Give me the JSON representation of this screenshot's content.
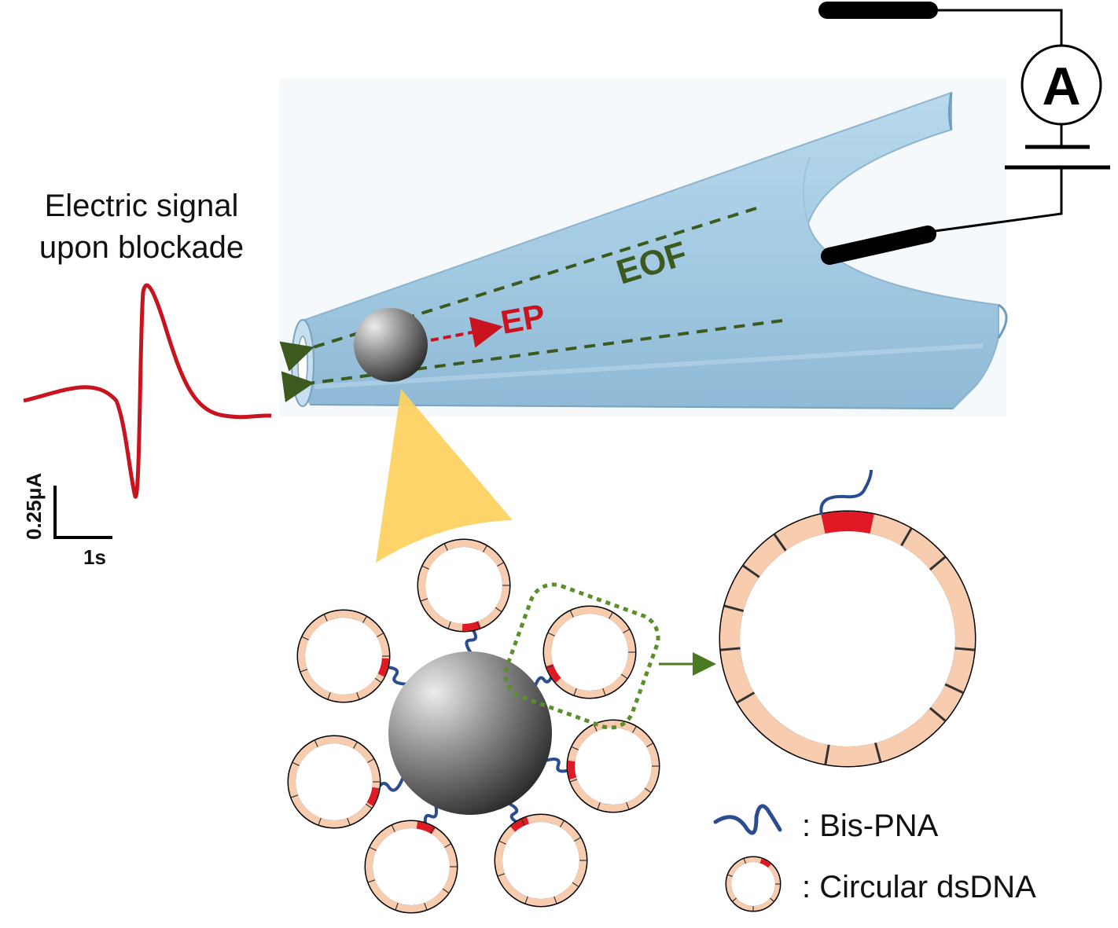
{
  "signal": {
    "caption_line1": "Electric signal",
    "caption_line2": "upon blockade",
    "scale_y": "0.25μA",
    "scale_x": "1s"
  },
  "pipette": {
    "ep_label": "EP",
    "eof_label": "EOF"
  },
  "ammeter": {
    "symbol": "A"
  },
  "legend": {
    "bis_pna": ": Bis-PNA",
    "circular_dsdna": ": Circular dsDNA"
  },
  "colors": {
    "signal_trace": "#c8141e",
    "ep_arrow": "#c8141e",
    "eof_arrow": "#3d5a1e",
    "pipette_fill": "#a9cde4",
    "dna_ring": "#f8ccae",
    "pna_strand": "#2b4c8f",
    "pna_site": "#e01a25",
    "highlight_cone": "#fcd262"
  }
}
